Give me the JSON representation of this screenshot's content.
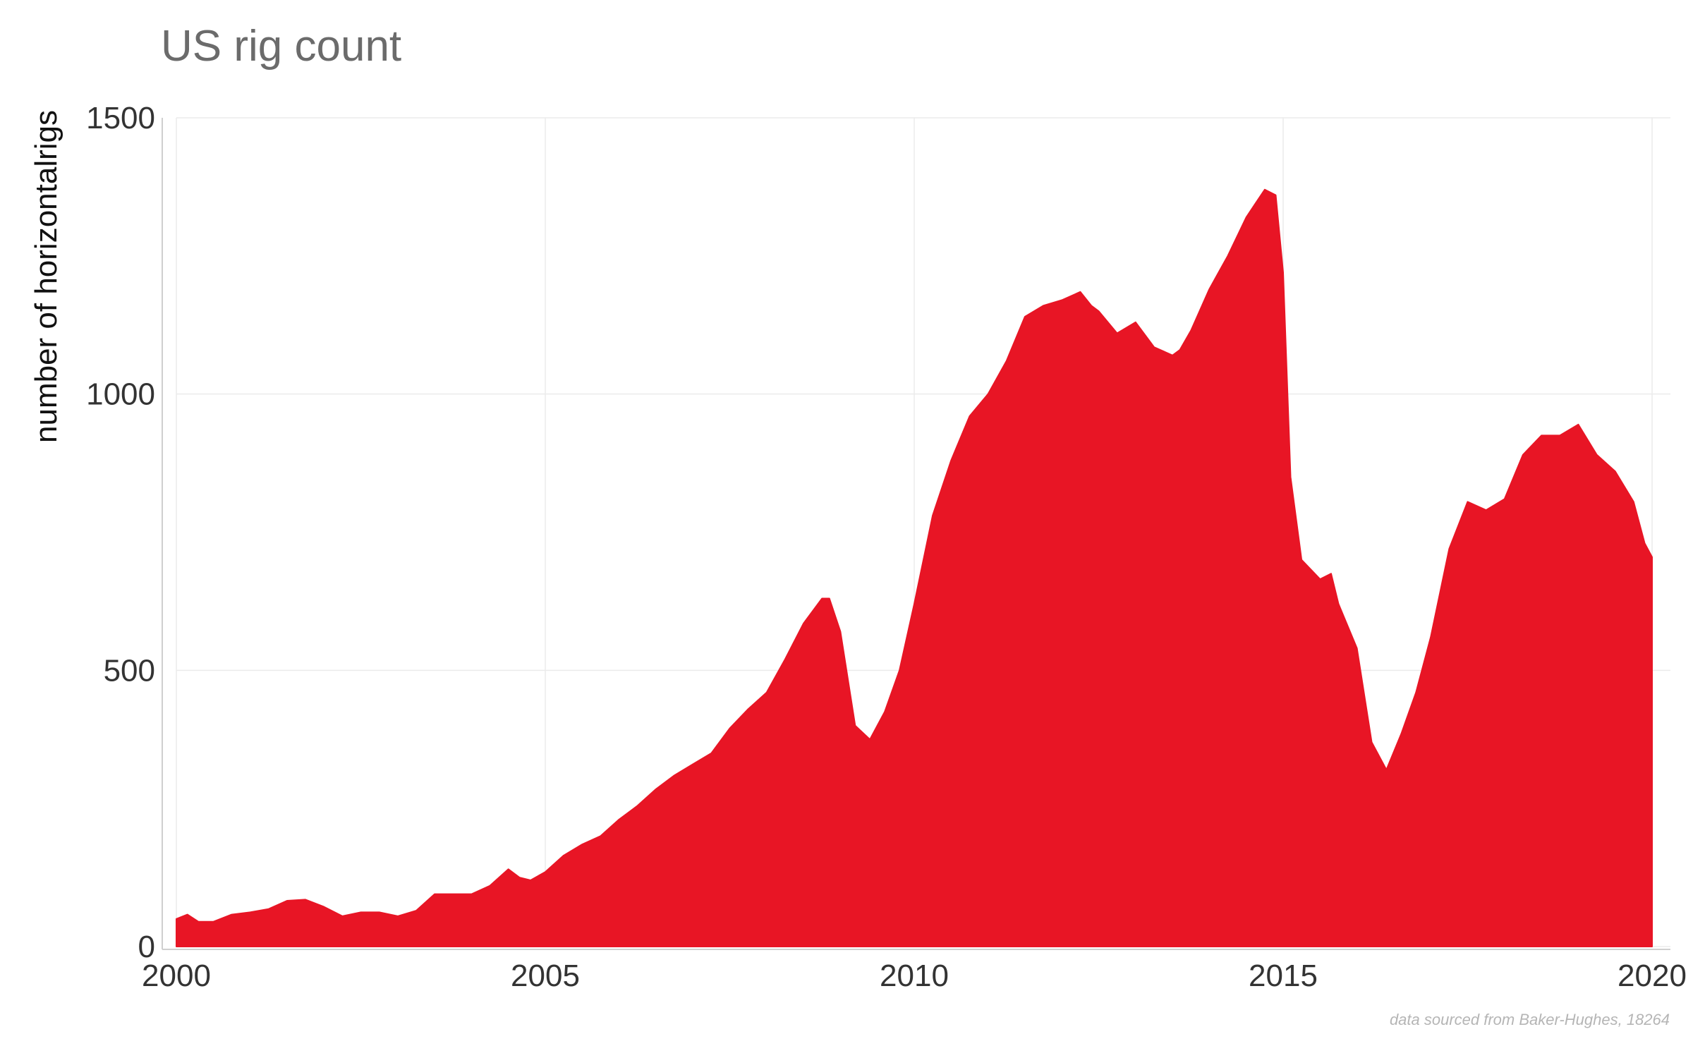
{
  "colors": {
    "area_fill": "#e81525",
    "grid": "#ebebeb",
    "axis": "#cfcfcf",
    "title": "#6b6b6b",
    "source": "#b5b5b5"
  },
  "chart_data": {
    "type": "area",
    "title": "US rig count",
    "xlabel": "",
    "ylabel": "number of horizontalrigs",
    "source_note": "data sourced from Baker-Hughes, 18264",
    "xlim": [
      2000,
      2020
    ],
    "ylim": [
      0,
      1500
    ],
    "x_ticks": [
      2000,
      2005,
      2010,
      2015,
      2020
    ],
    "x_tick_labels": [
      "2000",
      "2005",
      "2010",
      "2015",
      "2020"
    ],
    "y_ticks": [
      0,
      500,
      1000,
      1500
    ],
    "y_tick_labels": [
      "0",
      "500",
      "1000",
      "1500"
    ],
    "grid": true,
    "legend": "none",
    "series": [
      {
        "x": [
          2000.0,
          2000.15,
          2000.3,
          2000.5,
          2000.75,
          2001.0,
          2001.25,
          2001.5,
          2001.75,
          2002.0,
          2002.25,
          2002.5,
          2002.75,
          2003.0,
          2003.25,
          2003.5,
          2003.75,
          2004.0,
          2004.25,
          2004.5,
          2004.65,
          2004.8,
          2005.0,
          2005.25,
          2005.5,
          2005.75,
          2006.0,
          2006.25,
          2006.5,
          2006.75,
          2007.0,
          2007.25,
          2007.5,
          2007.75,
          2008.0,
          2008.25,
          2008.5,
          2008.75,
          2008.85,
          2009.0,
          2009.2,
          2009.4,
          2009.6,
          2009.8,
          2010.0,
          2010.25,
          2010.5,
          2010.75,
          2011.0,
          2011.25,
          2011.5,
          2011.75,
          2012.0,
          2012.25,
          2012.4,
          2012.5,
          2012.75,
          2013.0,
          2013.25,
          2013.5,
          2013.6,
          2013.75,
          2014.0,
          2014.25,
          2014.5,
          2014.75,
          2014.9,
          2015.0,
          2015.1,
          2015.25,
          2015.5,
          2015.65,
          2015.75,
          2016.0,
          2016.2,
          2016.4,
          2016.6,
          2016.8,
          2017.0,
          2017.25,
          2017.5,
          2017.75,
          2018.0,
          2018.25,
          2018.5,
          2018.75,
          2019.0,
          2019.25,
          2019.5,
          2019.75,
          2019.9,
          2020.0
        ],
        "values": [
          50,
          58,
          45,
          45,
          58,
          62,
          68,
          83,
          85,
          72,
          55,
          62,
          62,
          55,
          65,
          95,
          95,
          95,
          110,
          140,
          125,
          120,
          135,
          165,
          185,
          200,
          230,
          255,
          285,
          310,
          330,
          350,
          395,
          430,
          460,
          520,
          585,
          630,
          630,
          570,
          400,
          375,
          425,
          500,
          620,
          780,
          880,
          960,
          1000,
          1060,
          1140,
          1160,
          1170,
          1185,
          1160,
          1150,
          1110,
          1130,
          1085,
          1070,
          1080,
          1115,
          1190,
          1250,
          1320,
          1370,
          1360,
          1220,
          850,
          700,
          665,
          675,
          620,
          540,
          370,
          320,
          385,
          460,
          560,
          720,
          805,
          790,
          810,
          890,
          925,
          925,
          945,
          890,
          860,
          805,
          730,
          705
        ]
      }
    ]
  }
}
